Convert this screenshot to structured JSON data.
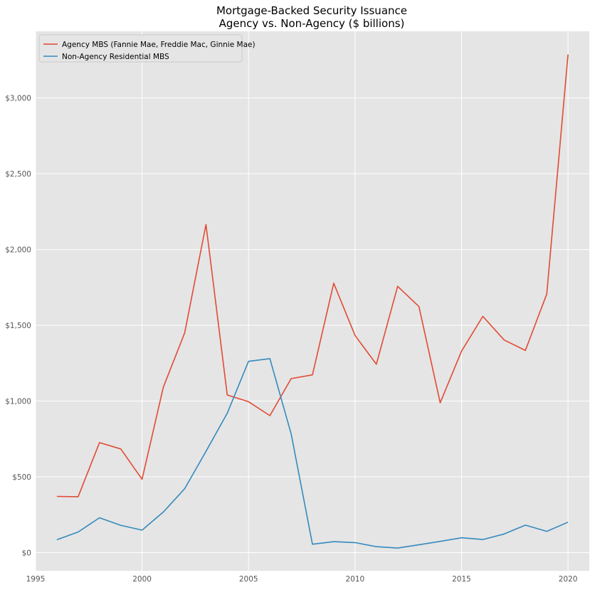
{
  "chart_data": {
    "type": "line",
    "title": "Mortgage-Backed Security Issuance",
    "subtitle": "Agency vs. Non-Agency ($ billions)",
    "xlabel": "",
    "ylabel": "",
    "x": [
      1996,
      1997,
      1998,
      1999,
      2000,
      2001,
      2002,
      2003,
      2004,
      2005,
      2006,
      2007,
      2008,
      2009,
      2010,
      2011,
      2012,
      2013,
      2014,
      2015,
      2016,
      2017,
      2018,
      2019,
      2020
    ],
    "xlim": [
      1995,
      2021
    ],
    "ylim": [
      -120,
      3440
    ],
    "x_ticks": [
      1995,
      2000,
      2005,
      2010,
      2015,
      2020
    ],
    "x_tick_labels": [
      "1995",
      "2000",
      "2005",
      "2010",
      "2015",
      "2020"
    ],
    "y_ticks": [
      0,
      500,
      1000,
      1500,
      2000,
      2500,
      3000
    ],
    "y_tick_labels": [
      "$0",
      "$500",
      "$1,000",
      "$1,500",
      "$2,000",
      "$2,500",
      "$3,000"
    ],
    "grid": true,
    "legend_position": "top-left",
    "series": [
      {
        "name": "Agency MBS (Fannie Mae, Freddie Mac, Ginnie Mae)",
        "color": "#E24A33",
        "values": [
          371,
          369,
          726,
          684,
          484,
          1092,
          1450,
          2165,
          1040,
          996,
          904,
          1148,
          1173,
          1778,
          1433,
          1243,
          1757,
          1624,
          989,
          1330,
          1559,
          1403,
          1334,
          1706,
          3287
        ]
      },
      {
        "name": "Non-Agency Residential MBS",
        "color": "#348ABD",
        "values": [
          85,
          136,
          230,
          180,
          148,
          268,
          422,
          668,
          920,
          1262,
          1280,
          783,
          55,
          72,
          66,
          39,
          30,
          52,
          74,
          98,
          86,
          123,
          181,
          140,
          201
        ]
      }
    ]
  }
}
